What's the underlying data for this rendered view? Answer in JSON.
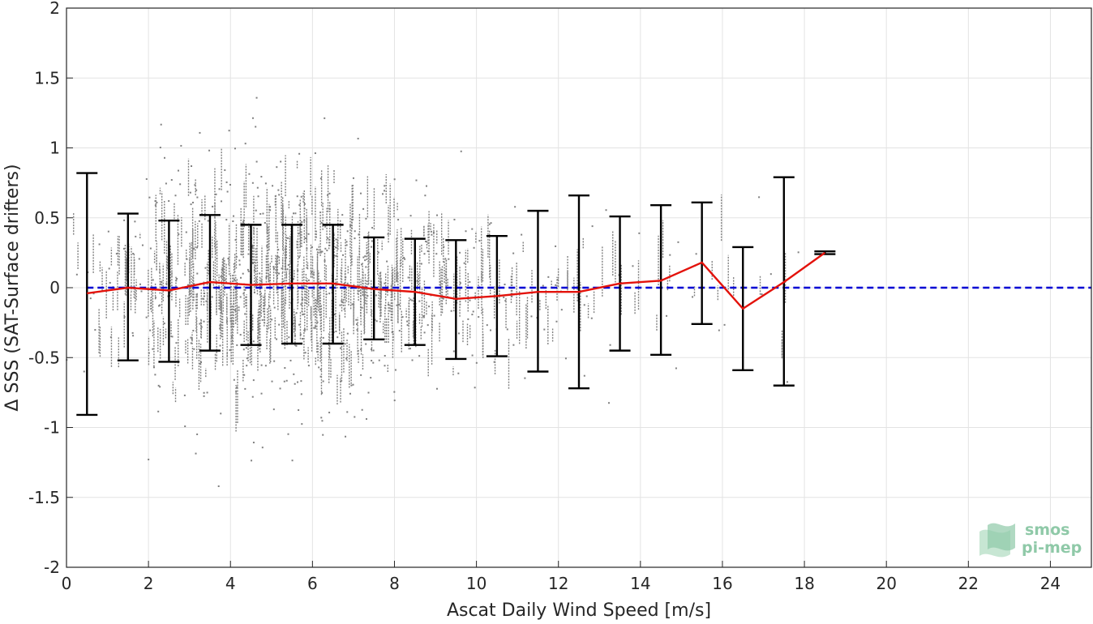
{
  "chart_data": {
    "type": "scatter",
    "title": "",
    "xlabel": "Ascat Daily Wind Speed [m/s]",
    "ylabel": "Δ SSS (SAT-Surface drifters)",
    "xlim": [
      0,
      25
    ],
    "ylim": [
      -2,
      2
    ],
    "xticks": [
      0,
      2,
      4,
      6,
      8,
      10,
      12,
      14,
      16,
      18,
      20,
      22,
      24
    ],
    "yticks": [
      -2,
      -1.5,
      -1,
      -0.5,
      0,
      0.5,
      1,
      1.5,
      2
    ],
    "grid": true,
    "scatter_points": {
      "color": "#808080",
      "note_density_by_bin": [
        {
          "x": 0.5,
          "spread": 0.6,
          "count": 8
        },
        {
          "x": 1.5,
          "spread": 0.75,
          "count": 20
        },
        {
          "x": 2.5,
          "spread": 0.9,
          "count": 45
        },
        {
          "x": 3.5,
          "spread": 0.9,
          "count": 65
        },
        {
          "x": 4.5,
          "spread": 0.9,
          "count": 75
        },
        {
          "x": 5.5,
          "spread": 0.85,
          "count": 75
        },
        {
          "x": 6.5,
          "spread": 0.85,
          "count": 70
        },
        {
          "x": 7.5,
          "spread": 0.75,
          "count": 55
        },
        {
          "x": 8.5,
          "spread": 0.7,
          "count": 40
        },
        {
          "x": 9.5,
          "spread": 0.6,
          "count": 28
        },
        {
          "x": 10.5,
          "spread": 0.55,
          "count": 18
        },
        {
          "x": 11.5,
          "spread": 0.5,
          "count": 12
        },
        {
          "x": 12.5,
          "spread": 0.55,
          "count": 8
        },
        {
          "x": 13.5,
          "spread": 0.5,
          "count": 6
        },
        {
          "x": 14.5,
          "spread": 0.5,
          "count": 5
        },
        {
          "x": 15.5,
          "spread": 0.45,
          "count": 4
        },
        {
          "x": 16.5,
          "spread": 0.5,
          "count": 3
        },
        {
          "x": 17.5,
          "spread": 0.55,
          "count": 3
        }
      ]
    },
    "series": [
      {
        "type": "line",
        "color": "#e3120b",
        "x": [
          0.5,
          1.5,
          2.5,
          3.5,
          4.5,
          5.5,
          6.5,
          7.5,
          8.5,
          9.5,
          10.5,
          11.5,
          12.5,
          13.5,
          14.5,
          15.5,
          16.5,
          17.5,
          18.5
        ],
        "values": [
          -0.04,
          0.0,
          -0.02,
          0.04,
          0.02,
          0.03,
          0.03,
          -0.01,
          -0.03,
          -0.08,
          -0.06,
          -0.03,
          -0.03,
          0.03,
          0.05,
          0.18,
          -0.15,
          0.04,
          0.25
        ]
      },
      {
        "type": "errorbar",
        "color": "#000000",
        "x": [
          0.5,
          1.5,
          2.5,
          3.5,
          4.5,
          5.5,
          6.5,
          7.5,
          8.5,
          9.5,
          10.5,
          11.5,
          12.5,
          13.5,
          14.5,
          15.5,
          16.5,
          17.5,
          18.5
        ],
        "upper": [
          0.82,
          0.53,
          0.48,
          0.52,
          0.45,
          0.45,
          0.45,
          0.36,
          0.35,
          0.34,
          0.37,
          0.55,
          0.66,
          0.51,
          0.59,
          0.61,
          0.29,
          0.79,
          0.26
        ],
        "lower": [
          -0.91,
          -0.52,
          -0.53,
          -0.45,
          -0.41,
          -0.4,
          -0.4,
          -0.37,
          -0.41,
          -0.51,
          -0.49,
          -0.6,
          -0.72,
          -0.45,
          -0.48,
          -0.26,
          -0.59,
          -0.7,
          0.24
        ]
      },
      {
        "type": "reference",
        "style": "dashed",
        "color": "#0000d4",
        "y": 0,
        "x": [
          0.5,
          25
        ]
      }
    ]
  },
  "logo": {
    "line1": "smos",
    "line2": "pi-mep",
    "color": "#8fc9a8"
  }
}
